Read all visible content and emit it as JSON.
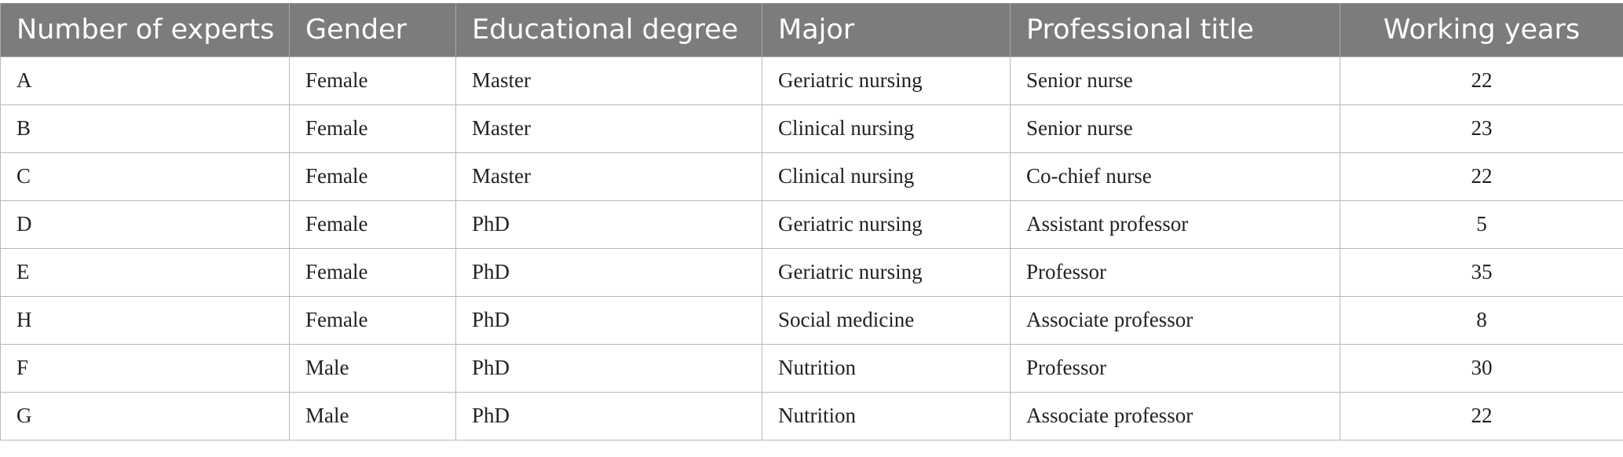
{
  "table": {
    "columns": [
      "Number of experts",
      "Gender",
      "Educational degree",
      "Major",
      "Professional title",
      "Working years"
    ],
    "rows": [
      [
        "A",
        "Female",
        "Master",
        "Geriatric nursing",
        "Senior nurse",
        "22"
      ],
      [
        "B",
        "Female",
        "Master",
        "Clinical nursing",
        "Senior nurse",
        "23"
      ],
      [
        "C",
        "Female",
        "Master",
        "Clinical nursing",
        "Co-chief nurse",
        "22"
      ],
      [
        "D",
        "Female",
        "PhD",
        "Geriatric nursing",
        "Assistant professor",
        "5"
      ],
      [
        "E",
        "Female",
        "PhD",
        "Geriatric nursing",
        "Professor",
        "35"
      ],
      [
        "H",
        "Female",
        "PhD",
        "Social medicine",
        "Associate professor",
        "8"
      ],
      [
        "F",
        "Male",
        "PhD",
        "Nutrition",
        "Professor",
        "30"
      ],
      [
        "G",
        "Male",
        "PhD",
        "Nutrition",
        "Associate professor",
        "22"
      ]
    ]
  },
  "colors": {
    "header_bg": "#7b7c7b",
    "header_text": "#ffffff",
    "border": "#b9b9b9"
  }
}
